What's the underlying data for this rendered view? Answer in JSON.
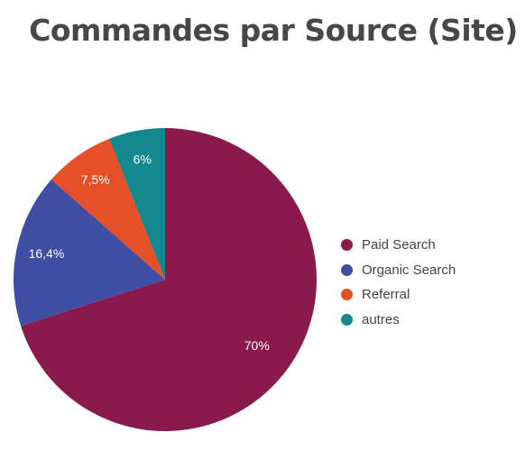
{
  "chart_data": {
    "type": "pie",
    "title": "Commandes par Source (Site)",
    "slices": [
      {
        "name": "Paid Search",
        "value": 70,
        "label": "70%",
        "color": "#8a1a4e"
      },
      {
        "name": "Organic Search",
        "value": 16.4,
        "label": "16,4%",
        "color": "#3f4ea3"
      },
      {
        "name": "Referral",
        "value": 7.5,
        "label": "7,5%",
        "color": "#e65028"
      },
      {
        "name": "autres",
        "value": 6,
        "label": "6%",
        "color": "#14888c"
      }
    ],
    "legend_position": "right"
  }
}
